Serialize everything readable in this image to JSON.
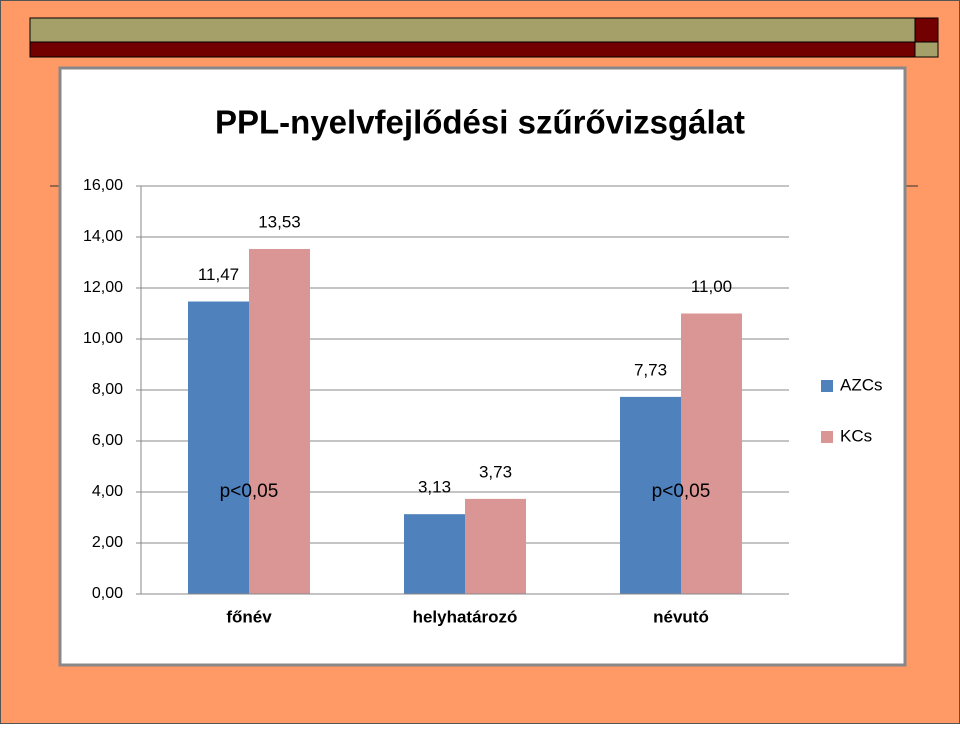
{
  "chart_data": {
    "type": "bar",
    "title": "PPL-nyelvfejlődési szűrővizsgálat",
    "categories": [
      "főnév",
      "helyhatározó",
      "névutó"
    ],
    "series": [
      {
        "name": "AZCs",
        "color": "#4f81bd",
        "values": [
          11.47,
          3.13,
          7.73
        ],
        "value_labels": [
          "11,47",
          "3,13",
          "7,73"
        ]
      },
      {
        "name": "KCs",
        "color": "#d99694",
        "values": [
          13.53,
          3.73,
          11.0
        ],
        "value_labels": [
          "13,53",
          "3,73",
          "11,00"
        ]
      }
    ],
    "ylim": [
      0,
      16
    ],
    "yticks": [
      {
        "value": 0,
        "label": "0,00"
      },
      {
        "value": 2,
        "label": "2,00"
      },
      {
        "value": 4,
        "label": "4,00"
      },
      {
        "value": 6,
        "label": "6,00"
      },
      {
        "value": 8,
        "label": "8,00"
      },
      {
        "value": 10,
        "label": "10,00"
      },
      {
        "value": 12,
        "label": "12,00"
      },
      {
        "value": 14,
        "label": "14,00"
      },
      {
        "value": 16,
        "label": "16,00"
      }
    ],
    "grid": true,
    "legend": "right",
    "annotations": [
      "p<0,05",
      "p<0,05"
    ]
  }
}
